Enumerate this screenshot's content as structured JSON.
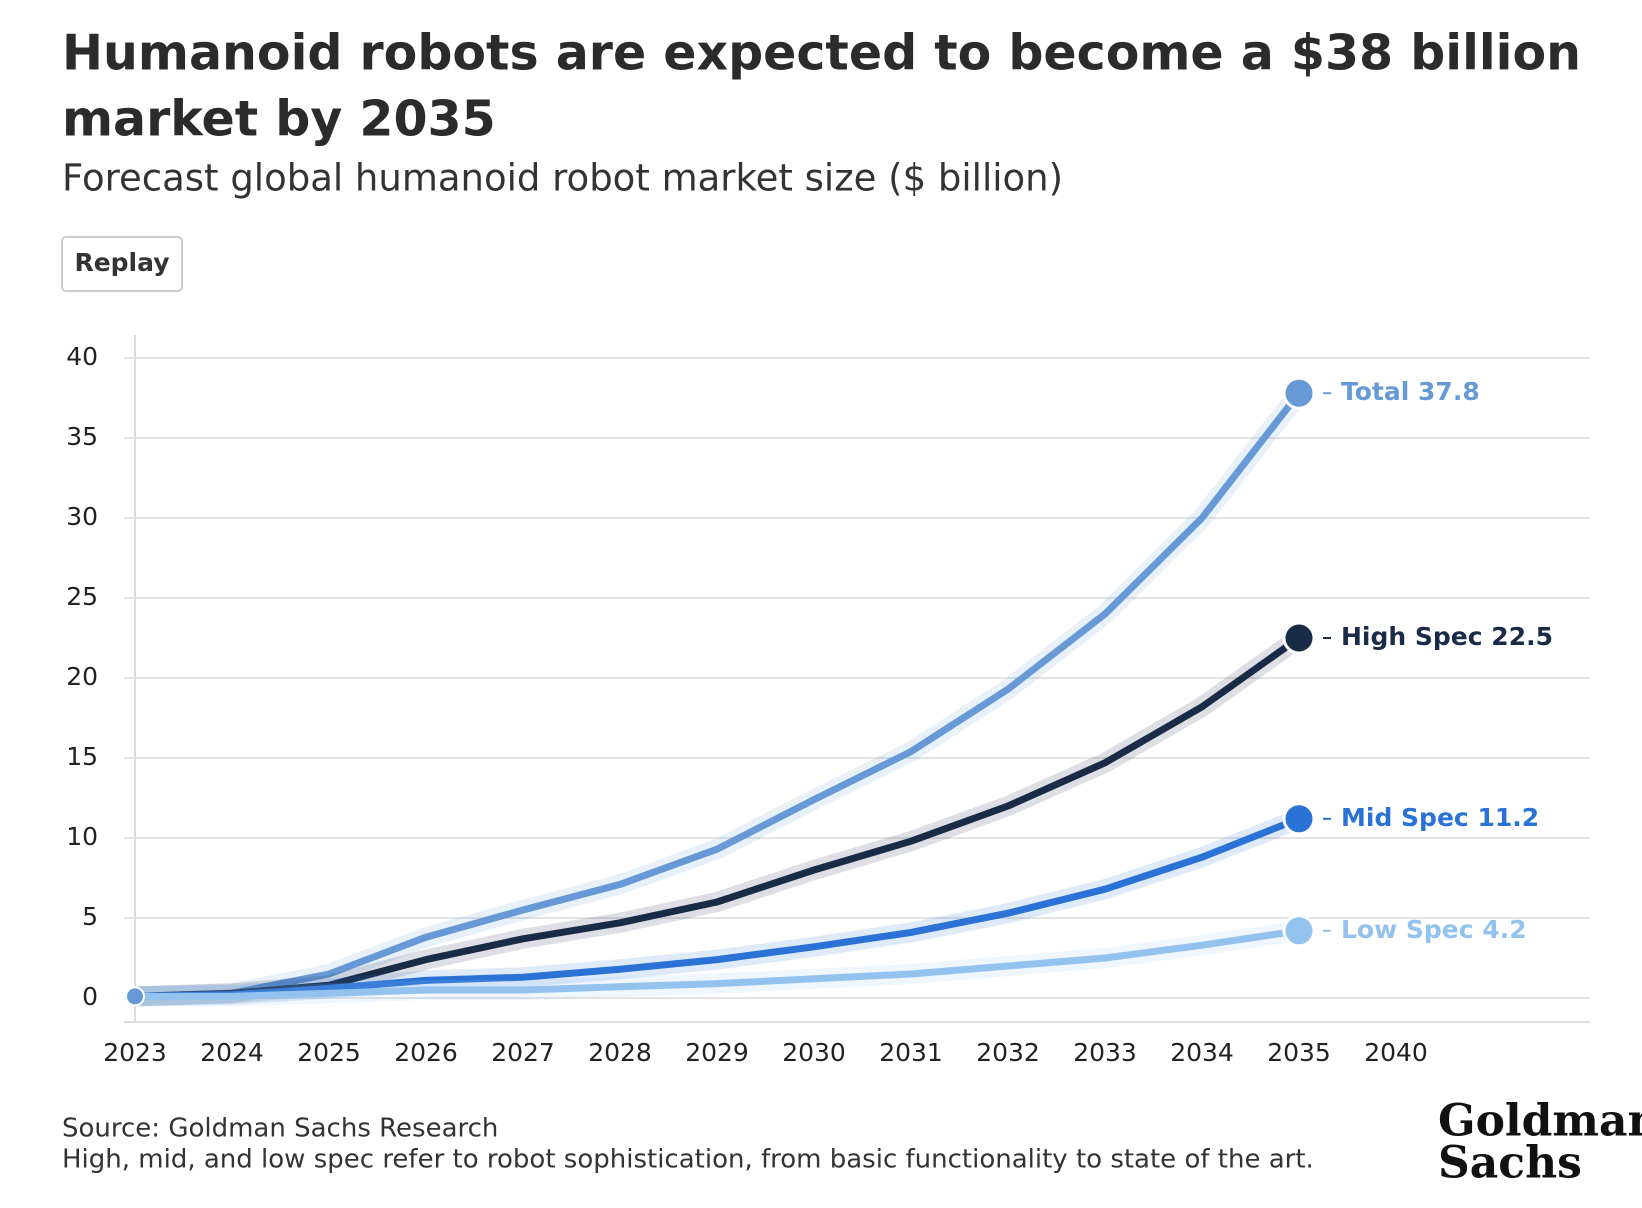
{
  "chart_data": {
    "type": "line",
    "title": [
      "Humanoid robots are expected to become a $38 billion",
      "market by 2035"
    ],
    "subtitle": "Forecast global humanoid robot market size ($ billion)",
    "button": "Replay",
    "categories": [
      "2023",
      "2024",
      "2025",
      "2026",
      "2027",
      "2028",
      "2029",
      "2030",
      "2031",
      "2032",
      "2033",
      "2034",
      "2035",
      "2040"
    ],
    "series": [
      {
        "name": "Total",
        "color": "#6699d6",
        "values": [
          0.1,
          0.3,
          1.5,
          3.8,
          5.5,
          7.1,
          9.3,
          12.4,
          15.4,
          19.3,
          24.0,
          30.0,
          37.8,
          null
        ]
      },
      {
        "name": "High Spec",
        "color": "#1a2b47",
        "values": [
          0.1,
          0.3,
          0.8,
          2.4,
          3.7,
          4.7,
          6.0,
          8.0,
          9.8,
          12.0,
          14.7,
          18.2,
          22.5,
          null
        ]
      },
      {
        "name": "Mid Spec",
        "color": "#2a72d5",
        "values": [
          0.1,
          0.2,
          0.6,
          1.1,
          1.3,
          1.8,
          2.4,
          3.2,
          4.1,
          5.3,
          6.8,
          8.8,
          11.2,
          null
        ]
      },
      {
        "name": "Low Spec",
        "color": "#93c2ef",
        "values": [
          0.1,
          0.1,
          0.3,
          0.5,
          0.5,
          0.7,
          0.9,
          1.2,
          1.5,
          2.0,
          2.5,
          3.3,
          4.2,
          null
        ]
      }
    ],
    "ylim": [
      0,
      40
    ],
    "yticks": [
      0,
      5,
      10,
      15,
      20,
      25,
      30,
      35,
      40
    ],
    "grid": true,
    "notes": [
      "Source: Goldman Sachs Research",
      "High, mid, and low spec refer to robot sophistication, from basic functionality to state of the art."
    ],
    "logo": [
      "Goldman",
      "Sachs"
    ]
  }
}
